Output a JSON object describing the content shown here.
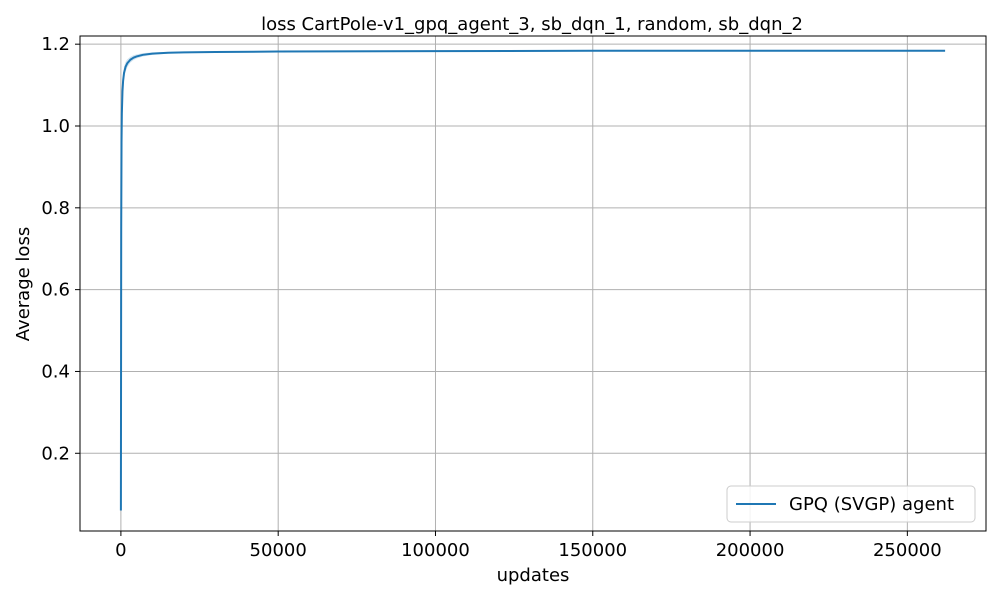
{
  "chart_data": {
    "type": "line",
    "title": "loss CartPole-v1_gpq_agent_3, sb_dqn_1, random, sb_dqn_2",
    "xlabel": "updates",
    "ylabel": "Average loss",
    "xlim": [
      -13000,
      275000
    ],
    "ylim": [
      0.01,
      1.22
    ],
    "xticks": [
      0,
      50000,
      100000,
      150000,
      200000,
      250000
    ],
    "xtick_labels": [
      "0",
      "50000",
      "100000",
      "150000",
      "200000",
      "250000"
    ],
    "yticks": [
      0.2,
      0.4,
      0.6,
      0.8,
      1.0,
      1.2
    ],
    "ytick_labels": [
      "0.2",
      "0.4",
      "0.6",
      "0.8",
      "1.0",
      "1.2"
    ],
    "grid": true,
    "legend_position": "bottom-right",
    "series": [
      {
        "name": "GPQ (SVGP) agent",
        "color": "#1f77b4",
        "band_color": "#1f77b4",
        "x": [
          0,
          50,
          100,
          200,
          300,
          500,
          700,
          1000,
          1500,
          2000,
          3000,
          4000,
          5000,
          7000,
          10000,
          15000,
          20000,
          30000,
          50000,
          100000,
          150000,
          200000,
          262000
        ],
        "y": [
          0.06,
          0.4,
          0.75,
          0.96,
          1.03,
          1.085,
          1.11,
          1.13,
          1.145,
          1.153,
          1.162,
          1.167,
          1.17,
          1.174,
          1.177,
          1.179,
          1.18,
          1.181,
          1.182,
          1.183,
          1.184,
          1.184,
          1.184
        ],
        "lower": [
          0.06,
          0.4,
          0.75,
          0.955,
          1.02,
          1.07,
          1.095,
          1.115,
          1.133,
          1.143,
          1.155,
          1.161,
          1.165,
          1.17,
          1.174,
          1.177,
          1.178,
          1.18,
          1.181,
          1.182,
          1.183,
          1.183,
          1.183
        ],
        "upper": [
          0.06,
          0.4,
          0.75,
          0.965,
          1.04,
          1.1,
          1.125,
          1.145,
          1.157,
          1.163,
          1.169,
          1.173,
          1.175,
          1.178,
          1.18,
          1.181,
          1.182,
          1.182,
          1.183,
          1.184,
          1.185,
          1.185,
          1.185
        ]
      }
    ]
  }
}
